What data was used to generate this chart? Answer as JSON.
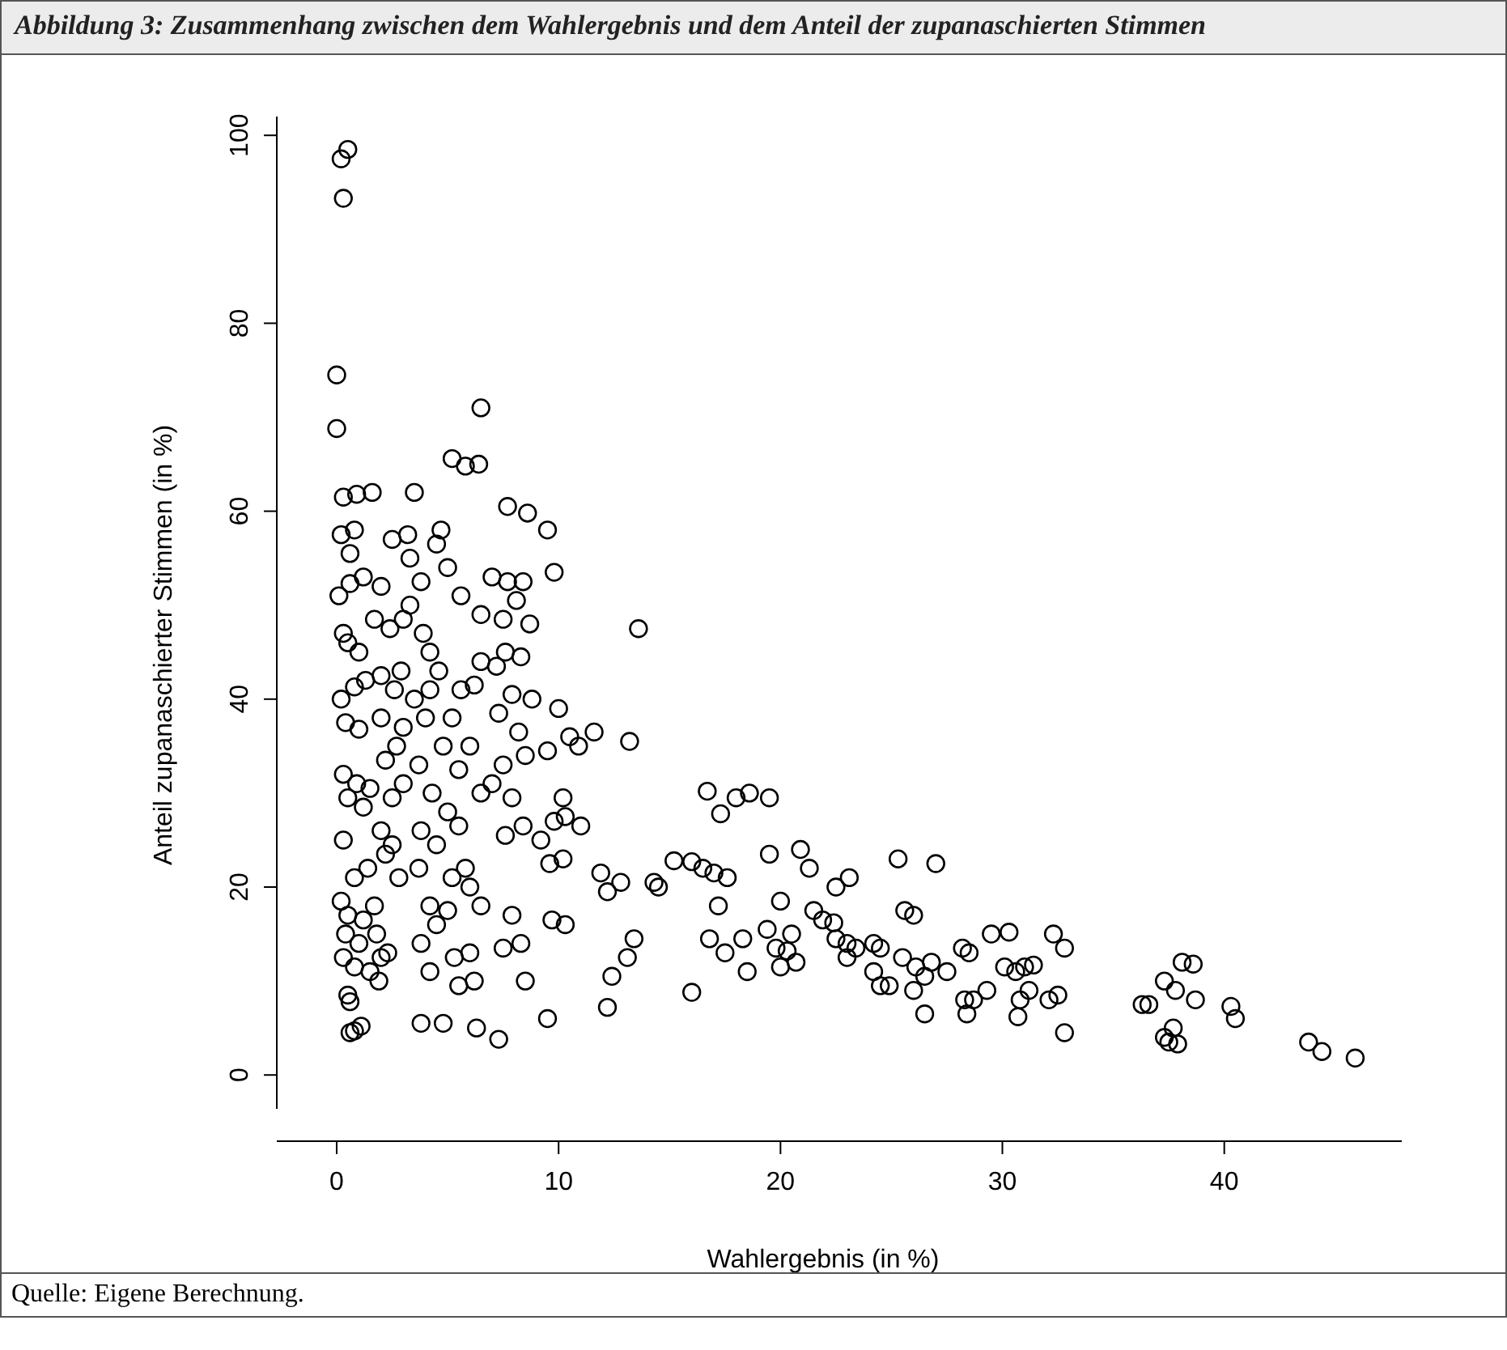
{
  "chart_data": {
    "type": "scatter",
    "title": "Abbildung 3: Zusammenhang zwischen dem Wahlergebnis und dem Anteil der zupanaschierten Stimmen",
    "xlabel": "Wahlergebnis (in %)",
    "ylabel": "Anteil zupanaschierter Stimmen (in %)",
    "annotations": [
      "Quelle: Eigene Berechnung."
    ],
    "marker": "circle",
    "xlim": [
      -2.7,
      48
    ],
    "ylim": [
      -3.6,
      102
    ],
    "xticks": [
      0,
      10,
      20,
      30,
      40
    ],
    "yticks": [
      0,
      20,
      40,
      60,
      80,
      100
    ],
    "series": [
      {
        "color": "#000000",
        "x": [
          0.2,
          0.5,
          0.3,
          0,
          0,
          6.5,
          5.8,
          6.4,
          5.2,
          0.3,
          0.9,
          1.6,
          0.2,
          0.8,
          0.6,
          0.1,
          0.6,
          1.2,
          0.3,
          0.5,
          1,
          0.2,
          0.8,
          1.3,
          0.4,
          1,
          0.3,
          0.9,
          1.5,
          0.5,
          1.2,
          0.3,
          0.8,
          1.4,
          0.2,
          0.5,
          0.4,
          1,
          0.3,
          0.8,
          1.5,
          0.5,
          0.6,
          0.8,
          1.1,
          0.6,
          1.2,
          1.8,
          1.9,
          2,
          2.3,
          1.7,
          2.2,
          2.5,
          2.8,
          2,
          2.5,
          3,
          2.2,
          2.7,
          3,
          2,
          2.6,
          2.9,
          2,
          1.7,
          2.4,
          3,
          3.3,
          2,
          2.5,
          3.2,
          3.5,
          3.3,
          3.8,
          3.9,
          4.2,
          4.6,
          4.2,
          3.5,
          4,
          4.8,
          3.7,
          4.3,
          5,
          3.8,
          4.5,
          3.7,
          4.2,
          5,
          4.5,
          3.8,
          4.2,
          3.8,
          4.8,
          5.5,
          5.3,
          6,
          6.2,
          6.3,
          7.3,
          5.2,
          5.8,
          6,
          6.5,
          5.5,
          6.5,
          7,
          5.5,
          6,
          5.2,
          5.6,
          6.2,
          6.5,
          7.2,
          6.5,
          7,
          5.6,
          5,
          4.5,
          4.7,
          7.7,
          8.6,
          9.5,
          7.7,
          8.4,
          7.5,
          8.1,
          8.7,
          7.6,
          8.3,
          7.9,
          8.8,
          7.3,
          8.2,
          7.5,
          8.5,
          7.9,
          8.4,
          7.6,
          9.2,
          9.8,
          10.3,
          9.5,
          10,
          10.5,
          10.9,
          11.6,
          13.2,
          13.6,
          9.8,
          10.2,
          11,
          9.6,
          10.2,
          7.9,
          8.3,
          7.5,
          8.5,
          9.7,
          10.3,
          9.5,
          11.9,
          12.2,
          12.8,
          12.4,
          12.2,
          13.1,
          13.4,
          14.3,
          14.5,
          15.2,
          16,
          16,
          16.5,
          17,
          16.7,
          17.3,
          18,
          18.6,
          19.5,
          17.2,
          17.6,
          18.3,
          16.8,
          17.5,
          18.5,
          19.4,
          19.8,
          20.3,
          20,
          20.5,
          20,
          19.5,
          20.9,
          21.3,
          20.7,
          21.5,
          21.9,
          22.4,
          22.5,
          23.1,
          22.5,
          23,
          23.4,
          23,
          24.2,
          24.5,
          24.2,
          24.5,
          24.9,
          25.3,
          25.6,
          26,
          25.5,
          26.1,
          26.5,
          26,
          26.5,
          27,
          26.8,
          27.5,
          28.2,
          28.5,
          28.3,
          28.7,
          28.4,
          29.3,
          29.5,
          30.3,
          30.1,
          30.6,
          30.8,
          31.2,
          31,
          31.4,
          30.7,
          32.1,
          32.3,
          32.5,
          32.8,
          32.8,
          36.3,
          36.6,
          37.3,
          37.8,
          38.1,
          38.6,
          38.7,
          37.3,
          37.5,
          37.7,
          37.9,
          40.3,
          40.5,
          43.8,
          44.4,
          45.9
        ],
        "values": [
          97.5,
          98.5,
          93.3,
          74.5,
          68.8,
          71,
          64.8,
          65,
          65.6,
          61.5,
          61.8,
          62,
          57.5,
          58,
          55.5,
          51,
          52.3,
          53,
          47,
          46,
          45,
          40,
          41.3,
          42,
          37.5,
          36.8,
          32,
          31,
          30.5,
          29.5,
          28.5,
          25,
          21,
          22,
          18.5,
          17,
          15,
          14,
          12.5,
          11.5,
          11,
          8.5,
          7.8,
          4.7,
          5.2,
          4.5,
          16.5,
          15,
          10,
          12.5,
          13,
          18,
          23.5,
          24.5,
          21,
          26,
          29.5,
          31,
          33.5,
          35,
          37,
          38,
          41,
          43,
          42.5,
          48.5,
          47.5,
          48.5,
          50,
          52,
          57,
          57.5,
          62,
          55,
          52.5,
          47,
          45,
          43,
          41,
          40,
          38,
          35,
          33,
          30,
          28,
          26,
          24.5,
          22,
          18,
          17.5,
          16,
          14,
          11,
          5.5,
          5.5,
          9.5,
          12.5,
          13,
          10,
          5,
          3.8,
          21,
          22,
          20,
          18,
          26.5,
          30,
          31,
          32.5,
          35,
          38,
          41,
          41.5,
          44,
          43.5,
          49,
          53,
          51,
          54,
          56.5,
          58,
          60.5,
          59.8,
          58,
          52.5,
          52.5,
          48.5,
          50.5,
          48,
          45,
          44.5,
          40.5,
          40,
          38.5,
          36.5,
          33,
          34,
          29.5,
          26.5,
          25.5,
          25,
          27,
          27.5,
          34.5,
          39,
          36,
          35,
          36.5,
          35.5,
          47.5,
          53.5,
          29.5,
          26.5,
          22.5,
          23,
          17,
          14,
          13.5,
          10,
          16.5,
          16,
          6,
          21.5,
          19.5,
          20.5,
          10.5,
          7.2,
          12.5,
          14.5,
          20.5,
          20,
          22.8,
          22.7,
          8.8,
          22,
          21.5,
          30.2,
          27.8,
          29.5,
          30,
          29.5,
          18,
          21,
          14.5,
          14.5,
          13,
          11,
          15.5,
          13.5,
          13.2,
          11.5,
          15,
          18.5,
          23.5,
          24,
          22,
          12,
          17.5,
          16.5,
          16.2,
          20,
          21,
          14.5,
          14,
          13.5,
          12.5,
          14,
          13.5,
          11,
          9.5,
          9.5,
          23,
          17.5,
          17,
          12.5,
          11.5,
          10.5,
          9,
          6.5,
          22.5,
          12,
          11,
          13.5,
          13,
          8,
          8,
          6.5,
          9,
          15,
          15.2,
          11.5,
          11,
          8,
          9,
          11.5,
          11.7,
          6.2,
          8,
          15,
          8.5,
          13.5,
          4.5,
          7.5,
          7.5,
          10,
          9,
          12,
          11.8,
          8,
          4,
          3.5,
          5,
          3.3,
          7.3,
          6,
          3.5,
          2.5,
          1.8
        ]
      }
    ]
  }
}
